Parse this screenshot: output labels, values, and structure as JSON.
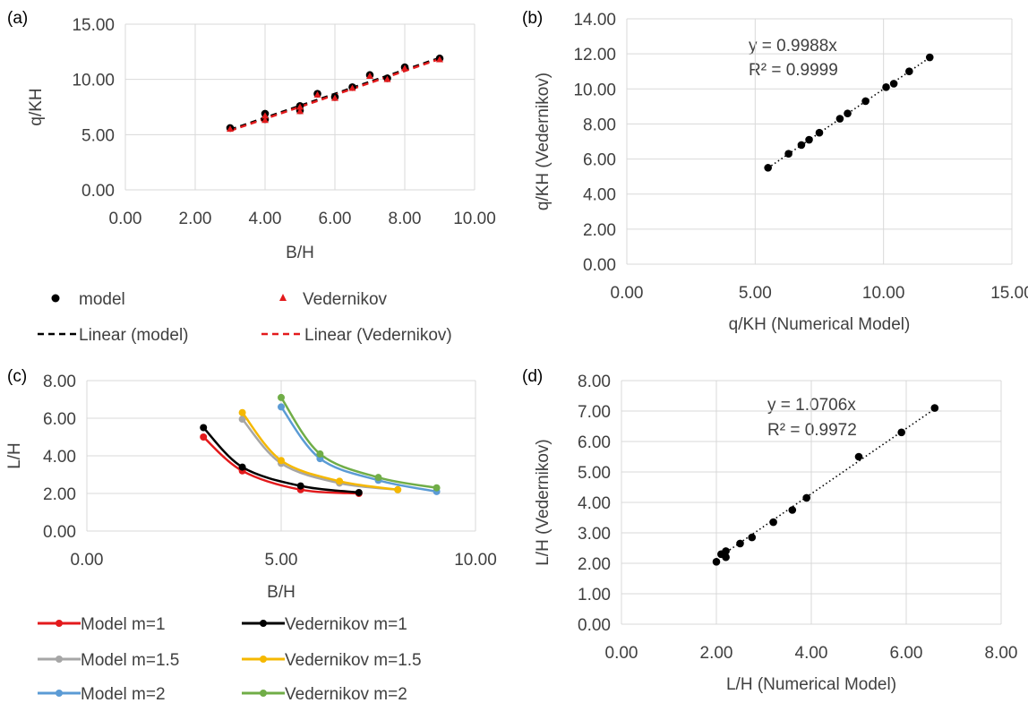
{
  "chart_data": [
    {
      "panel": "(a)",
      "type": "scatter",
      "xlabel": "B/H",
      "ylabel": "q/KH",
      "xlim": [
        0,
        10
      ],
      "ylim": [
        0,
        15
      ],
      "xticks": [
        "0.00",
        "2.00",
        "4.00",
        "6.00",
        "8.00",
        "10.00"
      ],
      "yticks": [
        "0.00",
        "5.00",
        "10.00",
        "15.00"
      ],
      "grid": true,
      "legend_position": "bottom",
      "series": [
        {
          "name": "model",
          "marker": "circle",
          "color": "#000000",
          "x": [
            3,
            4,
            4,
            5,
            5,
            5.5,
            6,
            6.5,
            7,
            7.5,
            8,
            9
          ],
          "y": [
            5.6,
            6.9,
            6.4,
            7.6,
            7.2,
            8.7,
            8.4,
            9.3,
            10.4,
            10.1,
            11.1,
            11.9
          ]
        },
        {
          "name": "Vedernikov",
          "marker": "triangle",
          "color": "#e31a1c",
          "x": [
            3,
            4,
            4,
            5,
            5,
            5.5,
            6,
            6.5,
            7,
            7.5,
            8,
            9
          ],
          "y": [
            5.5,
            6.7,
            6.3,
            7.5,
            7.1,
            8.6,
            8.3,
            9.2,
            10.3,
            10.0,
            11.0,
            11.8
          ]
        }
      ],
      "trendlines": [
        {
          "name": "Linear (model)",
          "color": "#000000",
          "dash": true,
          "x": [
            3,
            9
          ],
          "y": [
            5.45,
            11.95
          ]
        },
        {
          "name": "Linear (Vedernikov)",
          "color": "#e31a1c",
          "dash": true,
          "x": [
            3,
            9
          ],
          "y": [
            5.35,
            11.85
          ]
        }
      ]
    },
    {
      "panel": "(b)",
      "type": "scatter",
      "xlabel": "q/KH (Numerical Model)",
      "ylabel": "q/KH (Vedernikov)",
      "xlim": [
        0,
        15
      ],
      "ylim": [
        0,
        14
      ],
      "xticks": [
        "0.00",
        "5.00",
        "10.00",
        "15.00"
      ],
      "yticks": [
        "0.00",
        "2.00",
        "4.00",
        "6.00",
        "8.00",
        "10.00",
        "12.00",
        "14.00"
      ],
      "grid": true,
      "annotation": [
        "y = 0.9988x",
        "R² = 0.9999"
      ],
      "series": [
        {
          "name": "",
          "marker": "circle",
          "color": "#000000",
          "x": [
            5.5,
            6.3,
            6.8,
            7.1,
            7.5,
            8.3,
            8.6,
            9.3,
            10.1,
            10.4,
            11.0,
            11.8
          ],
          "y": [
            5.5,
            6.3,
            6.8,
            7.1,
            7.5,
            8.3,
            8.6,
            9.3,
            10.1,
            10.3,
            11.0,
            11.8
          ]
        }
      ],
      "trendlines": [
        {
          "name": "",
          "color": "#000000",
          "dash": "dot",
          "x": [
            5.5,
            11.8
          ],
          "y": [
            5.49,
            11.79
          ]
        }
      ]
    },
    {
      "panel": "(c)",
      "type": "line",
      "xlabel": "B/H",
      "ylabel": "L/H",
      "xlim": [
        0,
        10
      ],
      "ylim": [
        0,
        8
      ],
      "xticks": [
        "0.00",
        "5.00",
        "10.00"
      ],
      "yticks": [
        "0.00",
        "2.00",
        "4.00",
        "6.00",
        "8.00"
      ],
      "grid": true,
      "legend_position": "bottom",
      "series": [
        {
          "name": "Model m=1",
          "color": "#e31a1c",
          "x": [
            3,
            4,
            5.5,
            7
          ],
          "y": [
            5.0,
            3.2,
            2.2,
            2.0
          ]
        },
        {
          "name": "Vedernikov m=1",
          "color": "#000000",
          "x": [
            3,
            4,
            5.5,
            7
          ],
          "y": [
            5.5,
            3.4,
            2.4,
            2.05
          ]
        },
        {
          "name": "Model m=1.5",
          "color": "#a6a6a6",
          "x": [
            4,
            5,
            6.5,
            8
          ],
          "y": [
            5.95,
            3.6,
            2.55,
            2.2
          ]
        },
        {
          "name": "Vedernikov m=1.5",
          "color": "#f5b800",
          "x": [
            4,
            5,
            6.5,
            8
          ],
          "y": [
            6.3,
            3.75,
            2.65,
            2.2
          ]
        },
        {
          "name": "Model m=2",
          "color": "#5b9bd5",
          "x": [
            5,
            6,
            7.5,
            9
          ],
          "y": [
            6.6,
            3.85,
            2.7,
            2.1
          ]
        },
        {
          "name": "Vedernikov m=2",
          "color": "#70ad47",
          "x": [
            5,
            6,
            7.5,
            9
          ],
          "y": [
            7.1,
            4.1,
            2.85,
            2.3
          ]
        }
      ]
    },
    {
      "panel": "(d)",
      "type": "scatter",
      "xlabel": "L/H (Numerical Model)",
      "ylabel": "L/H (Vedernikov)",
      "xlim": [
        0,
        8
      ],
      "ylim": [
        0,
        8
      ],
      "xticks": [
        "0.00",
        "2.00",
        "4.00",
        "6.00",
        "8.00"
      ],
      "yticks": [
        "0.00",
        "1.00",
        "2.00",
        "3.00",
        "4.00",
        "5.00",
        "6.00",
        "7.00",
        "8.00"
      ],
      "grid": true,
      "annotation": [
        "y = 1.0706x",
        "R² = 0.9972"
      ],
      "series": [
        {
          "name": "",
          "marker": "circle",
          "color": "#000000",
          "x": [
            2.0,
            2.1,
            2.2,
            2.2,
            2.5,
            2.75,
            3.2,
            3.6,
            3.9,
            5.0,
            5.9,
            6.6
          ],
          "y": [
            2.05,
            2.3,
            2.2,
            2.4,
            2.65,
            2.85,
            3.35,
            3.75,
            4.15,
            5.5,
            6.3,
            7.1
          ]
        }
      ],
      "trendlines": [
        {
          "name": "",
          "color": "#000000",
          "dash": "dot",
          "x": [
            2.0,
            6.6
          ],
          "y": [
            2.14,
            7.07
          ]
        }
      ]
    }
  ]
}
